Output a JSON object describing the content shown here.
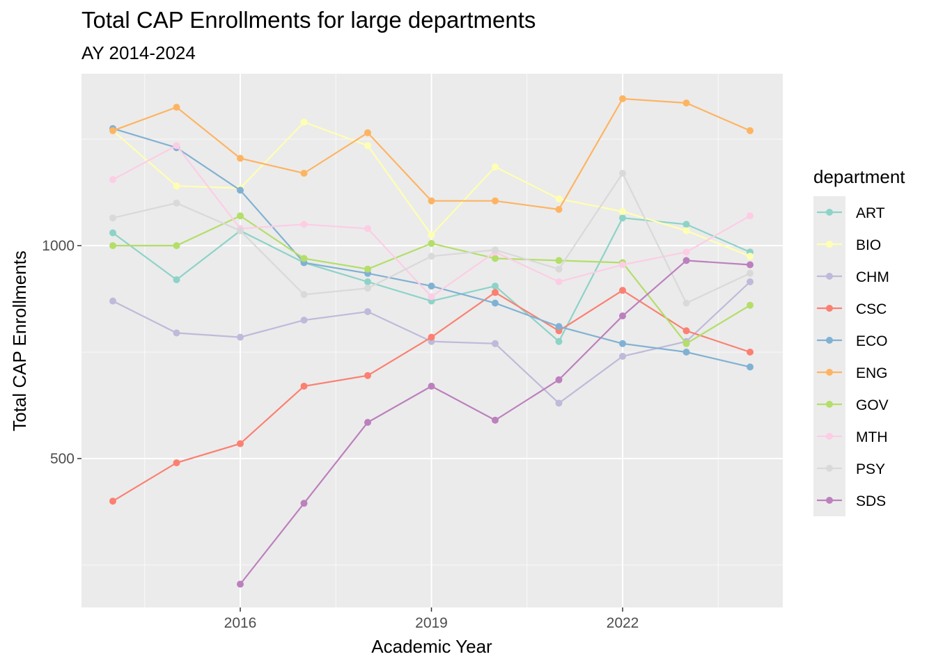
{
  "chart_data": {
    "type": "line",
    "title": "Total CAP Enrollments for large departments",
    "subtitle": "AY 2014-2024",
    "xlabel": "Academic Year",
    "ylabel": "Total CAP Enrollments",
    "x": [
      "2014-15",
      "2015-16",
      "2016-17",
      "2017-18",
      "2018-19",
      "2019-20",
      "2020-21",
      "2021-22",
      "2022-23",
      "2023-24",
      "2024-25"
    ],
    "x_tick_labels": [
      "2016",
      "2019",
      "2022"
    ],
    "y_ticks": [
      500,
      1000
    ],
    "ylim": [
      150,
      1400
    ],
    "grid": true,
    "legend_title": "department",
    "legend_position": "right",
    "series": [
      {
        "name": "ART",
        "color": "#8DD3C7",
        "values": [
          1030,
          920,
          1035,
          960,
          915,
          870,
          905,
          775,
          1065,
          1050,
          985
        ]
      },
      {
        "name": "BIO",
        "color": "#FFFFB3",
        "values": [
          1270,
          1140,
          1135,
          1290,
          1235,
          1025,
          1185,
          1110,
          1080,
          1035,
          975
        ]
      },
      {
        "name": "CHM",
        "color": "#BEBADA",
        "values": [
          870,
          795,
          785,
          825,
          845,
          775,
          770,
          630,
          740,
          775,
          915
        ]
      },
      {
        "name": "CSC",
        "color": "#FB8072",
        "values": [
          400,
          490,
          535,
          670,
          695,
          785,
          890,
          800,
          895,
          800,
          750
        ]
      },
      {
        "name": "ECO",
        "color": "#80B1D3",
        "values": [
          1275,
          1230,
          1130,
          960,
          935,
          905,
          865,
          810,
          770,
          750,
          715
        ]
      },
      {
        "name": "ENG",
        "color": "#FDB462",
        "values": [
          1270,
          1325,
          1205,
          1170,
          1265,
          1105,
          1105,
          1085,
          1345,
          1335,
          1270
        ]
      },
      {
        "name": "GOV",
        "color": "#B3DE69",
        "values": [
          1000,
          1000,
          1070,
          970,
          945,
          1005,
          970,
          965,
          960,
          770,
          860
        ]
      },
      {
        "name": "MTH",
        "color": "#FCCDE5",
        "values": [
          1155,
          1235,
          1040,
          1050,
          1040,
          880,
          985,
          915,
          955,
          985,
          1070
        ]
      },
      {
        "name": "PSY",
        "color": "#D9D9D9",
        "values": [
          1065,
          1100,
          1035,
          885,
          900,
          975,
          990,
          945,
          1170,
          865,
          935
        ]
      },
      {
        "name": "SDS",
        "color": "#BC80BD",
        "values": [
          null,
          null,
          205,
          395,
          585,
          670,
          590,
          685,
          835,
          965,
          955
        ]
      }
    ]
  },
  "colors": {
    "panel_background": "#EBEBEB",
    "grid_major": "#FFFFFF",
    "tick_text": "#4D4D4D"
  }
}
